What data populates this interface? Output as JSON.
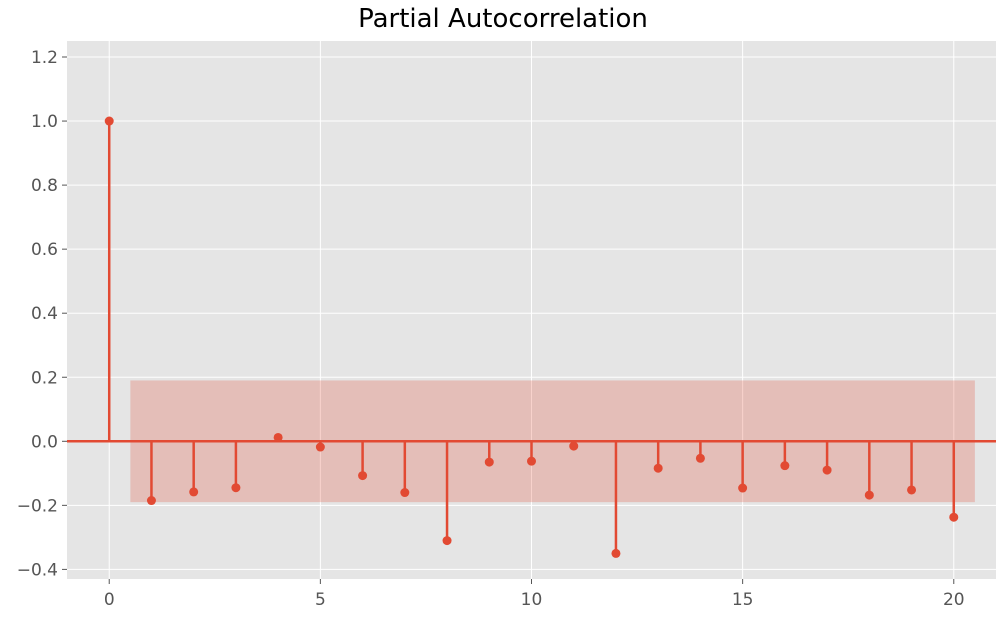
{
  "chart_data": {
    "type": "stem",
    "title": "Partial Autocorrelation",
    "x": [
      0,
      1,
      2,
      3,
      4,
      5,
      6,
      7,
      8,
      9,
      10,
      11,
      12,
      13,
      14,
      15,
      16,
      17,
      18,
      19,
      20
    ],
    "values": [
      1.0,
      -0.185,
      -0.158,
      -0.145,
      0.012,
      -0.018,
      -0.107,
      -0.16,
      -0.31,
      -0.065,
      -0.062,
      -0.015,
      -0.35,
      -0.084,
      -0.053,
      -0.146,
      -0.076,
      -0.09,
      -0.168,
      -0.152,
      -0.237
    ],
    "confidence_band": {
      "x_range": [
        0.5,
        20.5
      ],
      "lower": -0.19,
      "upper": 0.19
    },
    "xlim": [
      -1,
      21
    ],
    "ylim": [
      -0.43,
      1.25
    ],
    "xticks": [
      0,
      5,
      10,
      15,
      20
    ],
    "yticks": [
      -0.4,
      -0.2,
      0.0,
      0.2,
      0.4,
      0.6,
      0.8,
      1.0,
      1.2
    ],
    "xtick_labels": [
      "0",
      "5",
      "10",
      "15",
      "20"
    ],
    "ytick_labels": [
      "−0.4",
      "−0.2",
      "0.0",
      "0.2",
      "0.4",
      "0.6",
      "0.8",
      "1.0",
      "1.2"
    ],
    "grid": true,
    "colors": {
      "stem": "#e24a33",
      "band": "#e24a33",
      "background": "#e5e5e5",
      "grid": "#ffffff",
      "tick_text": "#555555"
    }
  }
}
